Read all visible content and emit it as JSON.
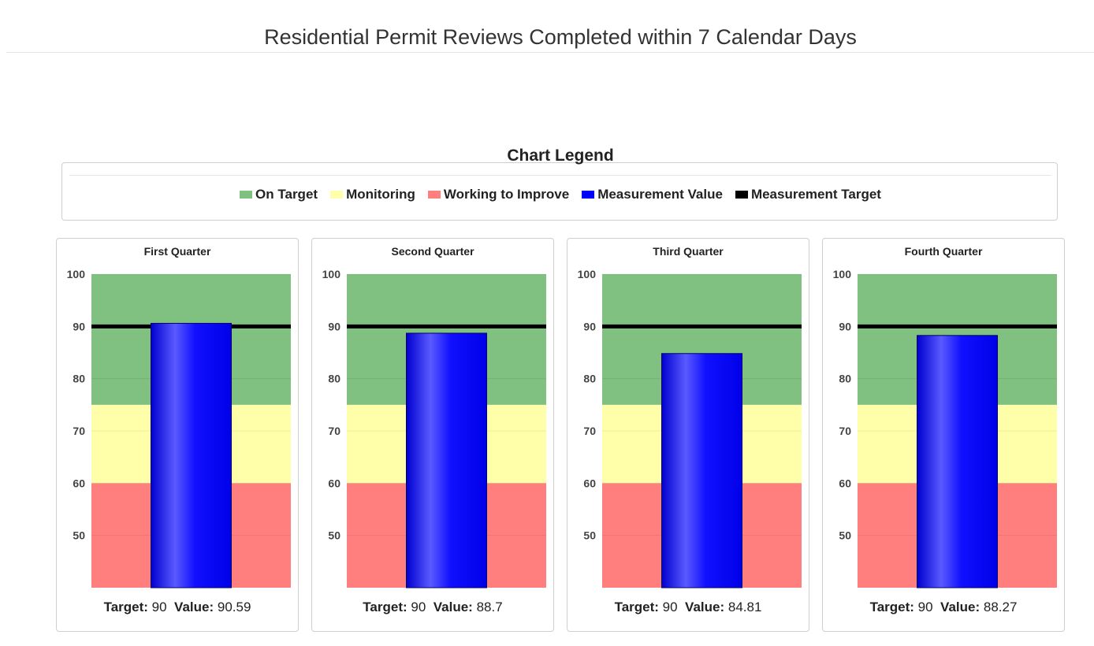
{
  "page": {
    "title": "Residential Permit Reviews Completed within 7 Calendar Days"
  },
  "legend": {
    "title": "Chart Legend",
    "items": [
      {
        "label": "On Target",
        "color": "#80c080"
      },
      {
        "label": "Monitoring",
        "color": "#ffffaa"
      },
      {
        "label": "Working to Improve",
        "color": "#ff7f7f"
      },
      {
        "label": "Measurement Value",
        "color": "#0000ff"
      },
      {
        "label": "Measurement Target",
        "color": "#000000"
      }
    ]
  },
  "footer_labels": {
    "target": "Target:",
    "value": "Value:"
  },
  "chart_data": [
    {
      "type": "bar",
      "title": "First Quarter",
      "ylim": [
        40,
        100
      ],
      "yticks": [
        50,
        60,
        70,
        80,
        90,
        100
      ],
      "bands": [
        {
          "name": "Working to Improve",
          "from": 40,
          "to": 60,
          "color": "#ff7f7f"
        },
        {
          "name": "Monitoring",
          "from": 60,
          "to": 75,
          "color": "#ffffaa"
        },
        {
          "name": "On Target",
          "from": 75,
          "to": 100,
          "color": "#80c080"
        }
      ],
      "target": 90,
      "value": 90.59
    },
    {
      "type": "bar",
      "title": "Second Quarter",
      "ylim": [
        40,
        100
      ],
      "yticks": [
        50,
        60,
        70,
        80,
        90,
        100
      ],
      "bands": [
        {
          "name": "Working to Improve",
          "from": 40,
          "to": 60,
          "color": "#ff7f7f"
        },
        {
          "name": "Monitoring",
          "from": 60,
          "to": 75,
          "color": "#ffffaa"
        },
        {
          "name": "On Target",
          "from": 75,
          "to": 100,
          "color": "#80c080"
        }
      ],
      "target": 90,
      "value": 88.7
    },
    {
      "type": "bar",
      "title": "Third Quarter",
      "ylim": [
        40,
        100
      ],
      "yticks": [
        50,
        60,
        70,
        80,
        90,
        100
      ],
      "bands": [
        {
          "name": "Working to Improve",
          "from": 40,
          "to": 60,
          "color": "#ff7f7f"
        },
        {
          "name": "Monitoring",
          "from": 60,
          "to": 75,
          "color": "#ffffaa"
        },
        {
          "name": "On Target",
          "from": 75,
          "to": 100,
          "color": "#80c080"
        }
      ],
      "target": 90,
      "value": 84.81
    },
    {
      "type": "bar",
      "title": "Fourth Quarter",
      "ylim": [
        40,
        100
      ],
      "yticks": [
        50,
        60,
        70,
        80,
        90,
        100
      ],
      "bands": [
        {
          "name": "Working to Improve",
          "from": 40,
          "to": 60,
          "color": "#ff7f7f"
        },
        {
          "name": "Monitoring",
          "from": 60,
          "to": 75,
          "color": "#ffffaa"
        },
        {
          "name": "On Target",
          "from": 75,
          "to": 100,
          "color": "#80c080"
        }
      ],
      "target": 90,
      "value": 88.27
    }
  ]
}
